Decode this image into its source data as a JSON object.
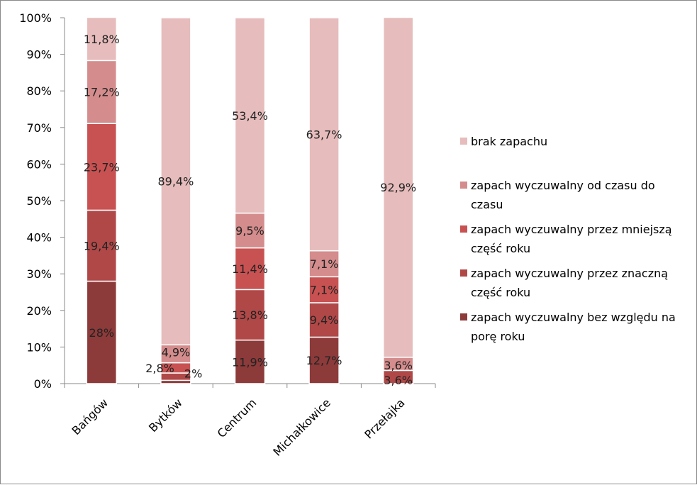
{
  "chart_data": {
    "type": "bar",
    "stacked": true,
    "normalized": true,
    "categories": [
      "Bańgów",
      "Bytków",
      "Centrum",
      "Michałkowice",
      "Przełajka"
    ],
    "y_ticks": [
      "0%",
      "10%",
      "20%",
      "30%",
      "40%",
      "50%",
      "60%",
      "70%",
      "80%",
      "90%",
      "100%"
    ],
    "ylim": [
      0,
      100
    ],
    "grid": false,
    "legend_position": "right",
    "series": [
      {
        "name": "zapach wyczuwalny bez względu na porę roku",
        "legend_lines": [
          "zapach wyczuwalny bez względu na",
          "porę roku"
        ],
        "color": "#8c3a3a",
        "values": [
          28,
          0.9,
          11.9,
          12.7,
          0
        ],
        "labels": [
          "28%",
          "",
          "11,9%",
          "12,7%",
          ""
        ]
      },
      {
        "name": "zapach wyczuwalny przez znaczną część roku",
        "legend_lines": [
          "zapach wyczuwalny przez znaczną",
          "część roku"
        ],
        "color": "#b04848",
        "values": [
          19.4,
          2,
          13.8,
          9.4,
          3.6
        ],
        "labels": [
          "19,4%",
          "2%",
          "13,8%",
          "9,4%",
          "3,6%"
        ]
      },
      {
        "name": "zapach wyczuwalny przez mniejszą część roku",
        "legend_lines": [
          "zapach wyczuwalny przez mniejszą",
          "część roku"
        ],
        "color": "#c85252",
        "values": [
          23.7,
          2.8,
          11.4,
          7.1,
          0
        ],
        "labels": [
          "23,7%",
          "2,8%",
          "11,4%",
          "7,1%",
          ""
        ]
      },
      {
        "name": "zapach wyczuwalny od czasu do czasu",
        "legend_lines": [
          "zapach wyczuwalny od czasu do",
          "czasu"
        ],
        "color": "#d48c8c",
        "values": [
          17.2,
          4.9,
          9.5,
          7.1,
          3.6
        ],
        "labels": [
          "17,2%",
          "4,9%",
          "9,5%",
          "7,1%",
          "3,6%"
        ]
      },
      {
        "name": "brak zapachu",
        "legend_lines": [
          "brak zapachu"
        ],
        "color": "#e6bcbc",
        "values": [
          11.8,
          89.4,
          53.4,
          63.7,
          92.9
        ],
        "labels": [
          "11,8%",
          "89,4%",
          "53,4%",
          "63,7%",
          "92,9%"
        ]
      }
    ]
  }
}
